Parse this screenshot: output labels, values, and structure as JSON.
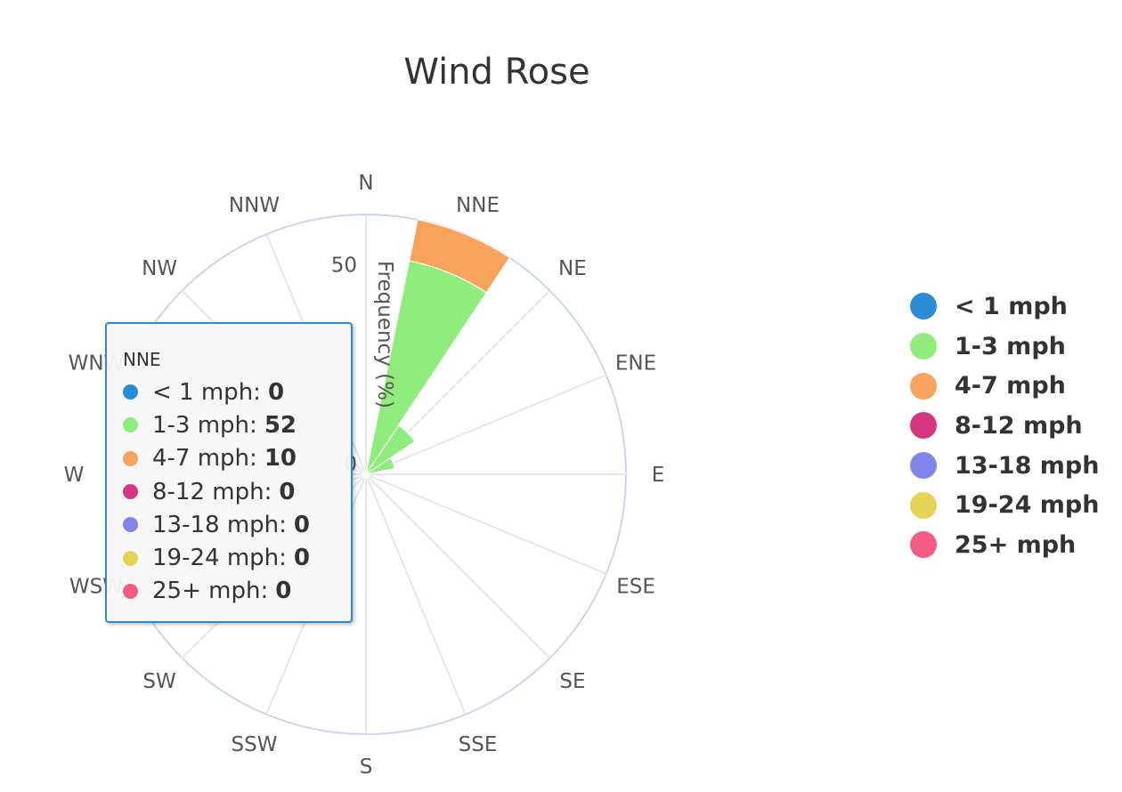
{
  "chart_data": {
    "type": "polar-stacked-bar",
    "title": "Wind Rose",
    "radial_axis_title": "Frequency (%)",
    "radial_ticks": [
      "0",
      "50"
    ],
    "rmax": 62,
    "directions": [
      "N",
      "NNE",
      "NE",
      "ENE",
      "E",
      "ESE",
      "SE",
      "SSE",
      "S",
      "SSW",
      "SW",
      "WSW",
      "W",
      "WNW",
      "NW",
      "NNW"
    ],
    "series": [
      {
        "name": "< 1 mph",
        "color": "#2b8cd6",
        "values": [
          0,
          0,
          0,
          0,
          0,
          0,
          0,
          0,
          0,
          0,
          0,
          0,
          0,
          0,
          0,
          0
        ]
      },
      {
        "name": "1-3 mph",
        "color": "#90ed7d",
        "values": [
          1,
          52,
          14,
          7,
          1,
          1,
          1,
          1,
          1,
          1,
          1,
          1,
          1,
          1,
          1,
          1
        ]
      },
      {
        "name": "4-7 mph",
        "color": "#f7a35c",
        "values": [
          0,
          10,
          0,
          0,
          0,
          0,
          0,
          0,
          0,
          0,
          0,
          0,
          0,
          0,
          0,
          0
        ]
      },
      {
        "name": "8-12 mph",
        "color": "#d6367f",
        "values": [
          0,
          0,
          0,
          0,
          0,
          0,
          0,
          0,
          0,
          0,
          0,
          0,
          0,
          0,
          0,
          0
        ]
      },
      {
        "name": "13-18 mph",
        "color": "#8085e9",
        "values": [
          0,
          0,
          0,
          0,
          0,
          0,
          0,
          0,
          0,
          0,
          0,
          0,
          0,
          0,
          0,
          0
        ]
      },
      {
        "name": "19-24 mph",
        "color": "#e4d354",
        "values": [
          0,
          0,
          0,
          0,
          0,
          0,
          0,
          0,
          0,
          0,
          0,
          0,
          0,
          0,
          0,
          0
        ]
      },
      {
        "name": "25+ mph",
        "color": "#f45b80",
        "values": [
          0,
          0,
          0,
          0,
          0,
          0,
          0,
          0,
          0,
          0,
          0,
          0,
          0,
          0,
          0,
          0
        ]
      }
    ]
  },
  "legend": {
    "items": [
      "< 1 mph",
      "1-3 mph",
      "4-7 mph",
      "8-12 mph",
      "13-18 mph",
      "19-24 mph",
      "25+ mph"
    ]
  },
  "tooltip": {
    "header": "NNE",
    "rows": [
      {
        "label": "< 1 mph:",
        "value": "0"
      },
      {
        "label": "1-3 mph:",
        "value": "52"
      },
      {
        "label": "4-7 mph:",
        "value": "10"
      },
      {
        "label": "8-12 mph:",
        "value": "0"
      },
      {
        "label": "13-18 mph:",
        "value": "0"
      },
      {
        "label": "19-24 mph:",
        "value": "0"
      },
      {
        "label": "25+ mph:",
        "value": "0"
      }
    ]
  }
}
